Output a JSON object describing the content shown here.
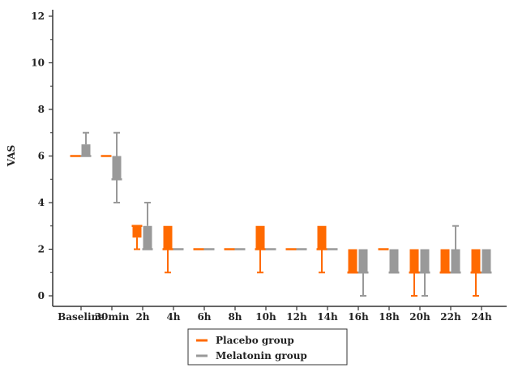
{
  "chart_data": {
    "type": "box",
    "title": "",
    "xlabel": "",
    "ylabel": "VAS",
    "ylim": [
      0,
      12
    ],
    "yticks": [
      0,
      2,
      4,
      6,
      8,
      10,
      12
    ],
    "categories": [
      "Baseline",
      "30min",
      "2h",
      "4h",
      "6h",
      "8h",
      "10h",
      "12h",
      "14h",
      "16h",
      "18h",
      "20h",
      "22h",
      "24h"
    ],
    "grid": false,
    "legend_position": "bottom-center",
    "series": [
      {
        "name": "Placebo group",
        "color": "#ff6a00",
        "boxes": [
          {
            "min": 6,
            "q1": 6,
            "median": 6,
            "q3": 6,
            "max": 6
          },
          {
            "min": 6,
            "q1": 6,
            "median": 6,
            "q3": 6,
            "max": 6
          },
          {
            "min": 2,
            "q1": 2.5,
            "median": 3,
            "q3": 3,
            "max": 3
          },
          {
            "min": 1,
            "q1": 2,
            "median": 2,
            "q3": 3,
            "max": 3
          },
          {
            "min": 2,
            "q1": 2,
            "median": 2,
            "q3": 2,
            "max": 2
          },
          {
            "min": 2,
            "q1": 2,
            "median": 2,
            "q3": 2,
            "max": 2
          },
          {
            "min": 1,
            "q1": 2,
            "median": 2,
            "q3": 3,
            "max": 3
          },
          {
            "min": 2,
            "q1": 2,
            "median": 2,
            "q3": 2,
            "max": 2
          },
          {
            "min": 1,
            "q1": 2,
            "median": 2,
            "q3": 3,
            "max": 3
          },
          {
            "min": 1,
            "q1": 1,
            "median": 1,
            "q3": 2,
            "max": 2
          },
          {
            "min": 2,
            "q1": 2,
            "median": 2,
            "q3": 2,
            "max": 2
          },
          {
            "min": 0,
            "q1": 1,
            "median": 1,
            "q3": 2,
            "max": 2
          },
          {
            "min": 1,
            "q1": 1,
            "median": 1,
            "q3": 2,
            "max": 2
          },
          {
            "min": 0,
            "q1": 1,
            "median": 1,
            "q3": 2,
            "max": 2
          }
        ]
      },
      {
        "name": "Melatonin group",
        "color": "#999999",
        "boxes": [
          {
            "min": 6,
            "q1": 6,
            "median": 6,
            "q3": 6.5,
            "max": 7
          },
          {
            "min": 4,
            "q1": 5,
            "median": 5,
            "q3": 6,
            "max": 7
          },
          {
            "min": 2,
            "q1": 2,
            "median": 2,
            "q3": 3,
            "max": 4
          },
          {
            "min": 2,
            "q1": 2,
            "median": 2,
            "q3": 2,
            "max": 2
          },
          {
            "min": 2,
            "q1": 2,
            "median": 2,
            "q3": 2,
            "max": 2
          },
          {
            "min": 2,
            "q1": 2,
            "median": 2,
            "q3": 2,
            "max": 2
          },
          {
            "min": 2,
            "q1": 2,
            "median": 2,
            "q3": 2,
            "max": 2
          },
          {
            "min": 2,
            "q1": 2,
            "median": 2,
            "q3": 2,
            "max": 2
          },
          {
            "min": 2,
            "q1": 2,
            "median": 2,
            "q3": 2,
            "max": 2
          },
          {
            "min": 0,
            "q1": 1,
            "median": 1,
            "q3": 2,
            "max": 2
          },
          {
            "min": 1,
            "q1": 1,
            "median": 1,
            "q3": 2,
            "max": 2
          },
          {
            "min": 0,
            "q1": 1,
            "median": 1,
            "q3": 2,
            "max": 2
          },
          {
            "min": 1,
            "q1": 1,
            "median": 1,
            "q3": 2,
            "max": 3
          },
          {
            "min": 1,
            "q1": 1,
            "median": 1,
            "q3": 2,
            "max": 2
          }
        ]
      }
    ]
  }
}
